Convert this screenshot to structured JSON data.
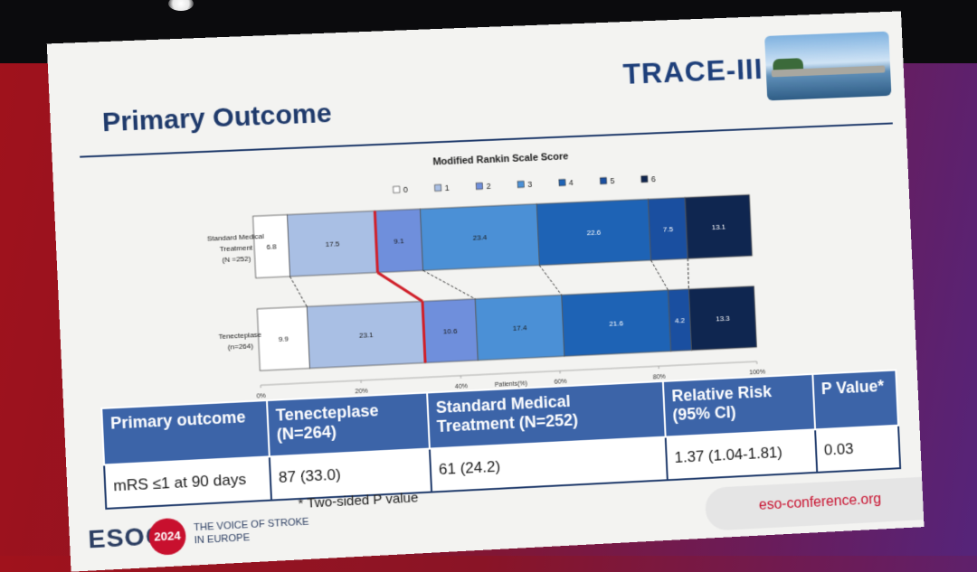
{
  "slide": {
    "title": "Primary Outcome",
    "logo_text": "TRACE-III"
  },
  "chart_data": {
    "type": "bar",
    "orientation": "horizontal",
    "stacked": true,
    "title": "Modified Rankin Scale Score",
    "xlabel": "Patients(%)",
    "xlim": [
      0,
      100
    ],
    "x_ticks": [
      "0%",
      "20%",
      "40%",
      "60%",
      "80%",
      "100%"
    ],
    "categories": [
      {
        "label_lines": [
          "Standard Medical",
          "Treatment",
          "(N =252)"
        ]
      },
      {
        "label_lines": [
          "Tenecteplase",
          "(n=264)"
        ]
      }
    ],
    "series": [
      {
        "name": "0",
        "color": "#ffffff",
        "values": [
          6.8,
          9.9
        ]
      },
      {
        "name": "1",
        "color": "#a9bfe4",
        "values": [
          17.5,
          23.1
        ]
      },
      {
        "name": "2",
        "color": "#6f8fdc",
        "values": [
          9.1,
          10.6
        ]
      },
      {
        "name": "3",
        "color": "#4b90d6",
        "values": [
          23.4,
          17.4
        ]
      },
      {
        "name": "4",
        "color": "#1e63b5",
        "values": [
          22.6,
          21.6
        ]
      },
      {
        "name": "5",
        "color": "#1a4fa0",
        "values": [
          7.5,
          4.2
        ]
      },
      {
        "name": "6",
        "color": "#0f2650",
        "values": [
          13.1,
          13.3
        ]
      }
    ],
    "value_labels": [
      [
        "6.8",
        "17.5",
        "9.1",
        "23.4",
        "22.6",
        "7.5",
        "13.1"
      ],
      [
        "9.9",
        "23.1",
        "10.6",
        "17.4",
        "21.6",
        "4.2",
        "13.3"
      ]
    ],
    "divider_after_series": "1",
    "divider_color": "#d0202a",
    "legend_position": "top"
  },
  "table": {
    "headers": [
      "Primary outcome",
      "Tenecteplase\n(N=264)",
      "Standard Medical\nTreatment (N=252)",
      "Relative Risk\n(95% CI)",
      "P Value*"
    ],
    "row": [
      "mRS ≤1 at 90 days",
      "87 (33.0)",
      "61 (24.2)",
      "1.37 (1.04-1.81)",
      "0.03"
    ],
    "footnote": "* Two-sided P value"
  },
  "footer": {
    "esoc_logo": "ESOC",
    "badge": "2024",
    "tagline": "THE VOICE OF STROKE\nIN EUROPE",
    "url": "eso-conference.org"
  }
}
